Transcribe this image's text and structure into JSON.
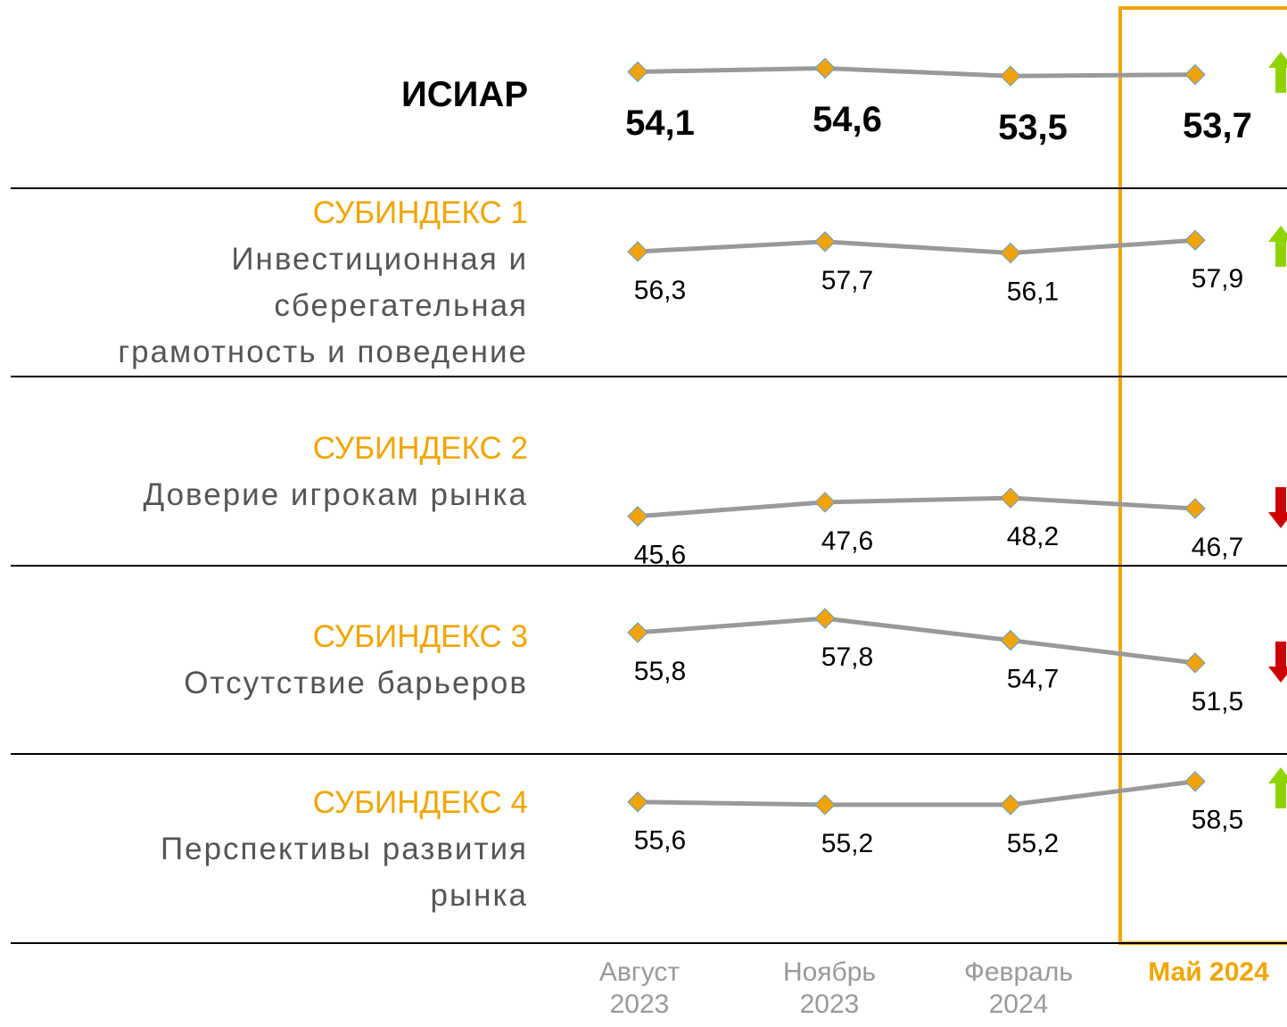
{
  "chart_data": {
    "type": "line",
    "categories": [
      "Август 2023",
      "Ноябрь 2023",
      "Февраль 2024",
      "Май 2024"
    ],
    "highlight": 3,
    "line_color": "#999999",
    "marker_color": "#f0a30a",
    "series": [
      {
        "name": "ИСИАР",
        "description": [],
        "values": [
          54.1,
          54.6,
          53.5,
          53.7
        ],
        "value_labels": [
          "54,1",
          "54,6",
          "53,5",
          "53,7"
        ],
        "ylim": [
          39,
          63
        ],
        "trend": "up"
      },
      {
        "name": "СУБИНДЕКС 1",
        "description": [
          "Инвестиционная и",
          "сберегательная",
          "грамотность и поведение"
        ],
        "values": [
          56.3,
          57.7,
          56.1,
          57.9
        ],
        "value_labels": [
          "56,3",
          "57,7",
          "56,1",
          "57,9"
        ],
        "ylim": [
          40,
          64
        ],
        "trend": "up"
      },
      {
        "name": "СУБИНДЕКС 2",
        "description": [
          "Доверие игрокам рынка"
        ],
        "values": [
          45.6,
          47.6,
          48.2,
          46.7
        ],
        "value_labels": [
          "45,6",
          "47,6",
          "48,2",
          "46,7"
        ],
        "ylim": [
          40,
          64
        ],
        "trend": "down"
      },
      {
        "name": "СУБИНДЕКС 3",
        "description": [
          "Отсутствие барьеров"
        ],
        "values": [
          55.8,
          57.8,
          54.7,
          51.5
        ],
        "value_labels": [
          "55,8",
          "57,8",
          "54,7",
          "51,5"
        ],
        "ylim": [
          40,
          64
        ],
        "trend": "down"
      },
      {
        "name": "СУБИНДЕКС 4",
        "description": [
          "Перспективы развития",
          "рынка"
        ],
        "values": [
          55.6,
          55.2,
          55.2,
          58.5
        ],
        "value_labels": [
          "55,6",
          "55,2",
          "55,2",
          "58,5"
        ],
        "ylim": [
          37,
          61
        ],
        "trend": "up"
      }
    ]
  }
}
